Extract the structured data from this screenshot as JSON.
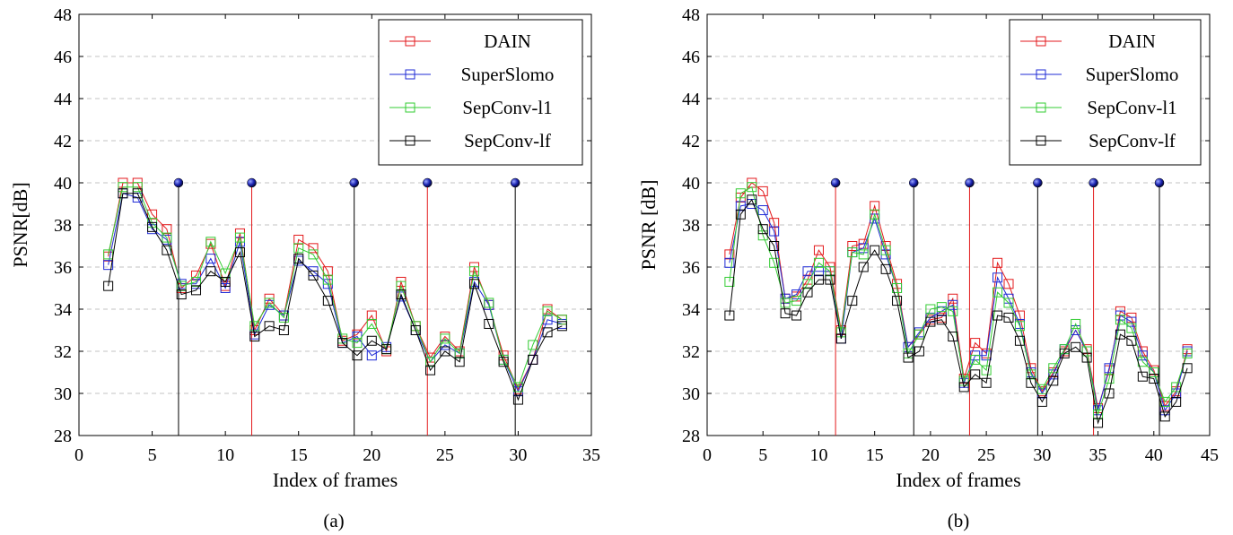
{
  "chart_data": [
    {
      "type": "line",
      "caption": "(a)",
      "xlabel": "Index of frames",
      "ylabel": "PSNR[dB]",
      "xlim": [
        0,
        35
      ],
      "ylim": [
        28,
        48
      ],
      "xticks": [
        0,
        5,
        10,
        15,
        20,
        25,
        30,
        35
      ],
      "yticks": [
        28,
        30,
        32,
        34,
        36,
        38,
        40,
        42,
        44,
        46,
        48
      ],
      "grid": "horizontal dashed",
      "legend_position": "top-right",
      "x": [
        2,
        3,
        4,
        5,
        6,
        7,
        8,
        9,
        10,
        11,
        12,
        13,
        14,
        15,
        16,
        17,
        18,
        19,
        20,
        21,
        22,
        23,
        24,
        25,
        26,
        27,
        28,
        29,
        30,
        31,
        32,
        33
      ],
      "series": [
        {
          "name": "DAIN",
          "color": "#e31a1c",
          "values": [
            36.5,
            40.0,
            40.0,
            38.5,
            37.8,
            35.0,
            35.6,
            37.1,
            35.1,
            37.6,
            33.0,
            34.5,
            33.7,
            37.3,
            36.9,
            35.8,
            32.5,
            32.8,
            33.7,
            32.0,
            35.3,
            33.2,
            31.7,
            32.7,
            32.0,
            36.0,
            34.2,
            31.8,
            30.2,
            31.6,
            34.0,
            33.5
          ]
        },
        {
          "name": "SuperSlomo",
          "color": "#1f2bd6",
          "values": [
            36.1,
            39.5,
            39.3,
            37.8,
            37.3,
            35.2,
            35.2,
            36.4,
            35.0,
            37.2,
            32.8,
            34.2,
            33.7,
            36.3,
            35.8,
            35.2,
            32.4,
            32.7,
            31.8,
            32.2,
            34.6,
            33.0,
            31.5,
            32.3,
            31.9,
            35.3,
            34.2,
            31.6,
            30.1,
            31.6,
            33.5,
            33.3
          ]
        },
        {
          "name": "SepConv-l1",
          "color": "#33cc33",
          "values": [
            36.6,
            39.8,
            39.8,
            38.1,
            37.4,
            35.1,
            35.3,
            37.2,
            35.7,
            37.4,
            33.2,
            34.3,
            33.6,
            36.9,
            36.6,
            35.4,
            32.6,
            32.4,
            33.3,
            32.1,
            35.1,
            33.2,
            31.5,
            32.6,
            31.9,
            35.8,
            34.3,
            31.6,
            30.3,
            32.3,
            33.9,
            33.5
          ]
        },
        {
          "name": "SepConv-lf",
          "color": "#000000",
          "values": [
            35.1,
            39.5,
            39.5,
            37.9,
            36.8,
            34.7,
            34.9,
            35.8,
            35.3,
            36.7,
            32.7,
            33.2,
            33.0,
            36.4,
            35.6,
            34.4,
            32.4,
            31.8,
            32.5,
            32.1,
            34.7,
            33.0,
            31.1,
            32.0,
            31.5,
            35.2,
            33.3,
            31.5,
            29.7,
            31.6,
            32.9,
            33.2
          ]
        }
      ],
      "markers": [
        {
          "x": 6.8,
          "y": 40,
          "color": "#000000"
        },
        {
          "x": 11.8,
          "y": 40,
          "color": "#e31a1c"
        },
        {
          "x": 18.8,
          "y": 40,
          "color": "#000000"
        },
        {
          "x": 23.8,
          "y": 40,
          "color": "#e31a1c"
        },
        {
          "x": 29.8,
          "y": 40,
          "color": "#000000"
        }
      ]
    },
    {
      "type": "line",
      "caption": "(b)",
      "xlabel": "Index of frames",
      "ylabel": "PSNR [dB]",
      "xlim": [
        0,
        45
      ],
      "ylim": [
        28,
        48
      ],
      "xticks": [
        0,
        5,
        10,
        15,
        20,
        25,
        30,
        35,
        40,
        45
      ],
      "yticks": [
        28,
        30,
        32,
        34,
        36,
        38,
        40,
        42,
        44,
        46,
        48
      ],
      "grid": "horizontal dashed",
      "legend_position": "top-right",
      "x": [
        2,
        3,
        4,
        5,
        6,
        7,
        8,
        9,
        10,
        11,
        12,
        13,
        14,
        15,
        16,
        17,
        18,
        19,
        20,
        21,
        22,
        23,
        24,
        25,
        26,
        27,
        28,
        29,
        30,
        31,
        32,
        33,
        34,
        35,
        36,
        37,
        38,
        39,
        40,
        41,
        42,
        43
      ],
      "series": [
        {
          "name": "DAIN",
          "color": "#e31a1c",
          "values": [
            36.6,
            39.3,
            40.0,
            39.6,
            38.1,
            34.5,
            34.6,
            35.4,
            36.8,
            36.0,
            33.0,
            37.0,
            37.1,
            38.9,
            37.0,
            35.2,
            32.2,
            32.8,
            33.5,
            33.6,
            34.5,
            30.7,
            32.4,
            31.9,
            36.2,
            35.2,
            33.7,
            31.2,
            30.1,
            31.0,
            32.0,
            33.0,
            32.1,
            29.3,
            31.1,
            33.9,
            33.6,
            32.0,
            31.1,
            29.4,
            30.1,
            32.1
          ]
        },
        {
          "name": "SuperSlomo",
          "color": "#1f2bd6",
          "values": [
            36.2,
            38.9,
            39.0,
            38.7,
            37.7,
            34.5,
            34.7,
            35.8,
            35.8,
            35.8,
            32.6,
            36.7,
            36.9,
            38.3,
            36.6,
            35.0,
            32.2,
            32.9,
            33.6,
            33.9,
            34.2,
            30.5,
            31.8,
            31.8,
            35.5,
            34.5,
            33.3,
            31.0,
            30.0,
            30.9,
            32.1,
            33.0,
            32.0,
            29.2,
            31.2,
            33.7,
            33.4,
            31.8,
            31.0,
            29.2,
            30.0,
            32.0
          ]
        },
        {
          "name": "SepConv-l1",
          "color": "#33cc33",
          "values": [
            35.3,
            39.5,
            39.8,
            37.5,
            36.2,
            34.3,
            34.4,
            35.2,
            36.2,
            35.8,
            32.9,
            36.7,
            36.6,
            38.5,
            36.8,
            35.0,
            31.9,
            32.8,
            34.0,
            34.1,
            33.9,
            30.6,
            31.6,
            31.1,
            34.8,
            34.3,
            33.2,
            30.9,
            30.2,
            31.2,
            32.1,
            33.3,
            32.0,
            29.0,
            30.7,
            33.5,
            33.1,
            31.5,
            31.0,
            29.6,
            30.3,
            31.9
          ]
        },
        {
          "name": "SepConv-lf",
          "color": "#000000",
          "values": [
            33.7,
            38.5,
            39.2,
            37.8,
            37.0,
            33.8,
            33.7,
            34.8,
            35.4,
            35.4,
            32.6,
            34.4,
            36.0,
            36.8,
            35.9,
            34.4,
            31.7,
            32.0,
            33.4,
            33.5,
            32.7,
            30.3,
            30.9,
            30.5,
            33.7,
            33.6,
            32.5,
            30.5,
            29.6,
            30.6,
            31.9,
            32.2,
            31.7,
            28.6,
            30.0,
            32.8,
            32.5,
            30.8,
            30.7,
            28.9,
            29.6,
            31.2
          ]
        }
      ],
      "markers": [
        {
          "x": 11.5,
          "y": 40,
          "color": "#e31a1c"
        },
        {
          "x": 18.5,
          "y": 40,
          "color": "#000000"
        },
        {
          "x": 23.5,
          "y": 40,
          "color": "#e31a1c"
        },
        {
          "x": 29.6,
          "y": 40,
          "color": "#000000"
        },
        {
          "x": 34.6,
          "y": 40,
          "color": "#e31a1c"
        },
        {
          "x": 40.5,
          "y": 40,
          "color": "#000000"
        }
      ]
    }
  ]
}
